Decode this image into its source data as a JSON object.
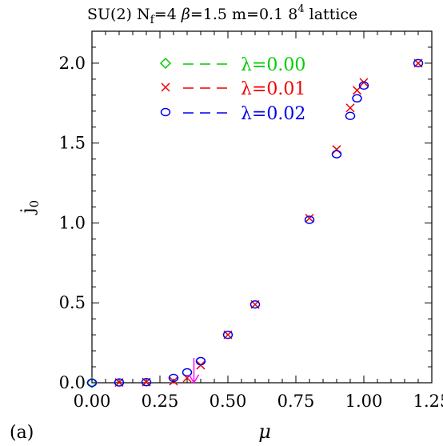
{
  "chart_data": {
    "type": "scatter",
    "title": "SU(2) N_f=4 β=1.5 m=0.1 8^4 lattice",
    "title_parts": {
      "prefix": "SU(2) N",
      "nf_sub": "f",
      "nf_val": "=4",
      "beta_sym": "β",
      "beta_val": "=1.5",
      "mass": "m=0.1",
      "lat_base": "8",
      "lat_sup": "4",
      "lat_word": "lattice"
    },
    "panel_label": "(a)",
    "xlabel": "μ",
    "ylabel_main": "j",
    "ylabel_sub": "0",
    "xlim": [
      0.0,
      1.25
    ],
    "ylim": [
      0.0,
      2.2
    ],
    "x_ticks": [
      0.0,
      0.25,
      0.5,
      0.75,
      1.0,
      1.25
    ],
    "x_tick_labels": [
      "0.00",
      "0.25",
      "0.50",
      "0.75",
      "1.00",
      "1.25"
    ],
    "y_ticks": [
      0.0,
      0.5,
      1.0,
      1.5,
      2.0
    ],
    "y_tick_labels": [
      "0.0",
      "0.5",
      "1.0",
      "1.5",
      "2.0"
    ],
    "grid": false,
    "legend_position": "top-left",
    "series": [
      {
        "name": "λ=0.00",
        "marker": "diamond",
        "color": "#00cc00",
        "x": [
          0.0
        ],
        "y": [
          0.0
        ]
      },
      {
        "name": "λ=0.01",
        "marker": "x",
        "color": "#ee0000",
        "x": [
          0.1,
          0.2,
          0.3,
          0.35,
          0.4,
          0.5,
          0.6,
          0.8,
          0.9,
          0.95,
          0.975,
          1.0,
          1.2
        ],
        "y": [
          0.002,
          0.004,
          0.01,
          0.03,
          0.11,
          0.3,
          0.49,
          1.03,
          1.46,
          1.72,
          1.83,
          1.88,
          2.0
        ]
      },
      {
        "name": "λ=0.02",
        "marker": "circle",
        "color": "#0000ee",
        "x": [
          0.0,
          0.1,
          0.2,
          0.3,
          0.35,
          0.4,
          0.5,
          0.6,
          0.8,
          0.9,
          0.95,
          0.975,
          1.0,
          1.2
        ],
        "y": [
          0.0,
          0.002,
          0.004,
          0.03,
          0.065,
          0.135,
          0.3,
          0.49,
          1.02,
          1.43,
          1.67,
          1.78,
          1.86,
          2.0
        ]
      }
    ],
    "annotation": {
      "type": "arrow-down",
      "color": "#ff00ff",
      "x": 0.375,
      "y_from": 0.155,
      "y_to": 0.0
    }
  }
}
